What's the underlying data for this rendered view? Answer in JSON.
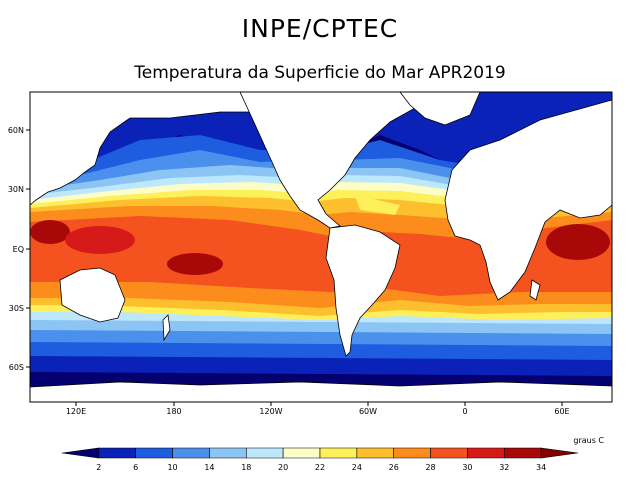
{
  "header": {
    "organization": "INPE/CPTEC",
    "subtitle": "Temperatura da Superficie do Mar APR2019"
  },
  "map": {
    "type": "sea-surface-temperature",
    "units_label": "graus C",
    "lat_labels": [
      "60N",
      "30N",
      "EQ",
      "30S",
      "60S"
    ],
    "lon_labels": [
      "120E",
      "180",
      "120W",
      "60W",
      "0",
      "60E"
    ]
  },
  "legend": {
    "tick_labels": [
      "2",
      "6",
      "10",
      "14",
      "18",
      "20",
      "22",
      "24",
      "26",
      "28",
      "30",
      "32",
      "34"
    ],
    "colors": [
      "#04006f",
      "#0a22b8",
      "#1e5ce0",
      "#4a90ec",
      "#8cc4f4",
      "#bde8fc",
      "#fdfdc8",
      "#fdf05a",
      "#fdbf2e",
      "#fc8c1c",
      "#f4521e",
      "#d61a1a",
      "#a80808",
      "#820000"
    ]
  }
}
